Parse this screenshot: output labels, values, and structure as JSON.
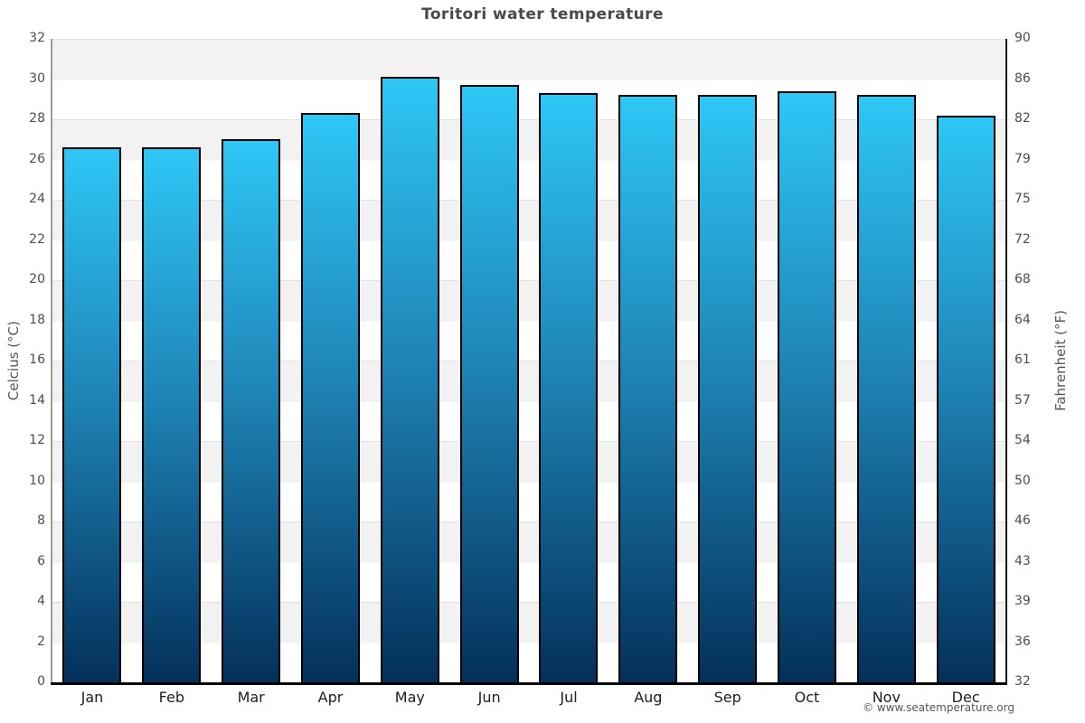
{
  "footer": "© www.seatemperature.org",
  "chart_data": {
    "type": "bar",
    "title": "Toritori water temperature",
    "categories": [
      "Jan",
      "Feb",
      "Mar",
      "Apr",
      "May",
      "Jun",
      "Jul",
      "Aug",
      "Sep",
      "Oct",
      "Nov",
      "Dec"
    ],
    "values": [
      26.6,
      26.6,
      27.0,
      28.3,
      30.1,
      29.7,
      29.3,
      29.2,
      29.2,
      29.4,
      29.2,
      28.2
    ],
    "unit": "°C",
    "ylabel_left": "Celcius (°C)",
    "ylabel_right": "Fahrenheit (°F)",
    "ylim": [
      0,
      32
    ],
    "y_ticks_left": [
      32,
      30,
      28,
      26,
      24,
      22,
      20,
      18,
      16,
      14,
      12,
      10,
      8,
      6,
      4,
      2,
      0
    ],
    "y_ticks_right": [
      90,
      86,
      82,
      79,
      75,
      72,
      68,
      64,
      61,
      57,
      54,
      50,
      46,
      43,
      39,
      36,
      32
    ],
    "grid": "horizontal-bands",
    "legend": "none",
    "colors": {
      "bar_top": "#2ec7f6",
      "bar_mid": "#1e82b4",
      "bar_bottom": "#04305a",
      "bar_border": "#000000",
      "band_gray": "#f2f2f2",
      "band_white": "#ffffff",
      "title_text": "#4a4a4a",
      "tick_text": "#4d4d4d"
    }
  }
}
